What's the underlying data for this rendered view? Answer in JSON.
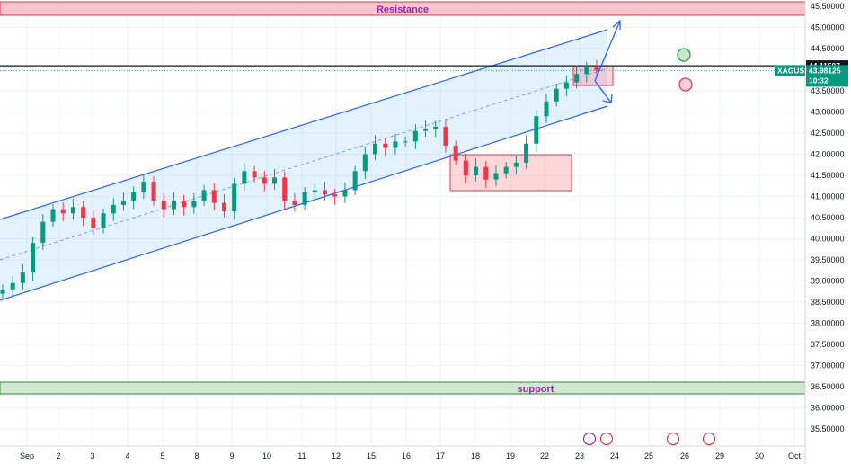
{
  "chart_data": {
    "type": "candlestick",
    "symbol": "XAGUSD",
    "x_tick_labels": [
      "Sep",
      "2",
      "3",
      "4",
      "5",
      "8",
      "9",
      "10",
      "11",
      "12",
      "15",
      "16",
      "17",
      "18",
      "19",
      "22",
      "23",
      "24",
      "25",
      "26",
      "29",
      "30",
      "Oct"
    ],
    "y_tick_labels": [
      "35.50000",
      "36.00000",
      "36.50000",
      "37.00000",
      "37.50000",
      "38.00000",
      "38.50000",
      "39.00000",
      "39.50000",
      "40.00000",
      "40.50000",
      "41.00000",
      "41.50000",
      "42.00000",
      "42.50000",
      "43.00000",
      "43.50000",
      "44.00000",
      "44.50000",
      "45.00000",
      "45.50000"
    ],
    "ylim": [
      35.3,
      45.6
    ],
    "grid": true,
    "resistance_zone": {
      "label": "Resistance",
      "from": 45.25,
      "to": 45.6
    },
    "support_zone": {
      "label": "support",
      "from": 36.5,
      "to": 36.65
    },
    "horizontal_line": {
      "label": "44.11507",
      "value": 44.11507
    },
    "price_tag": {
      "symbol": "XAGUSD",
      "price": "43.98125",
      "countdown": "10:32",
      "value": 43.98125
    },
    "close_prices": [
      38.8,
      38.95,
      39.2,
      39.9,
      40.4,
      40.7,
      40.6,
      40.75,
      40.5,
      40.25,
      40.6,
      40.8,
      40.9,
      41.1,
      41.35,
      40.9,
      40.7,
      40.9,
      40.75,
      40.9,
      41.15,
      40.85,
      40.65,
      41.3,
      41.6,
      41.45,
      41.3,
      41.45,
      40.9,
      40.8,
      41.1,
      41.15,
      41.05,
      41.0,
      41.15,
      41.6,
      42.0,
      42.25,
      42.15,
      42.3,
      42.3,
      42.55,
      42.6,
      42.65,
      42.2,
      41.85,
      41.5,
      41.7,
      41.4,
      41.55,
      41.7,
      41.8,
      42.25,
      42.9,
      43.25,
      43.55,
      43.7,
      43.9,
      44.05,
      43.98
    ]
  }
}
